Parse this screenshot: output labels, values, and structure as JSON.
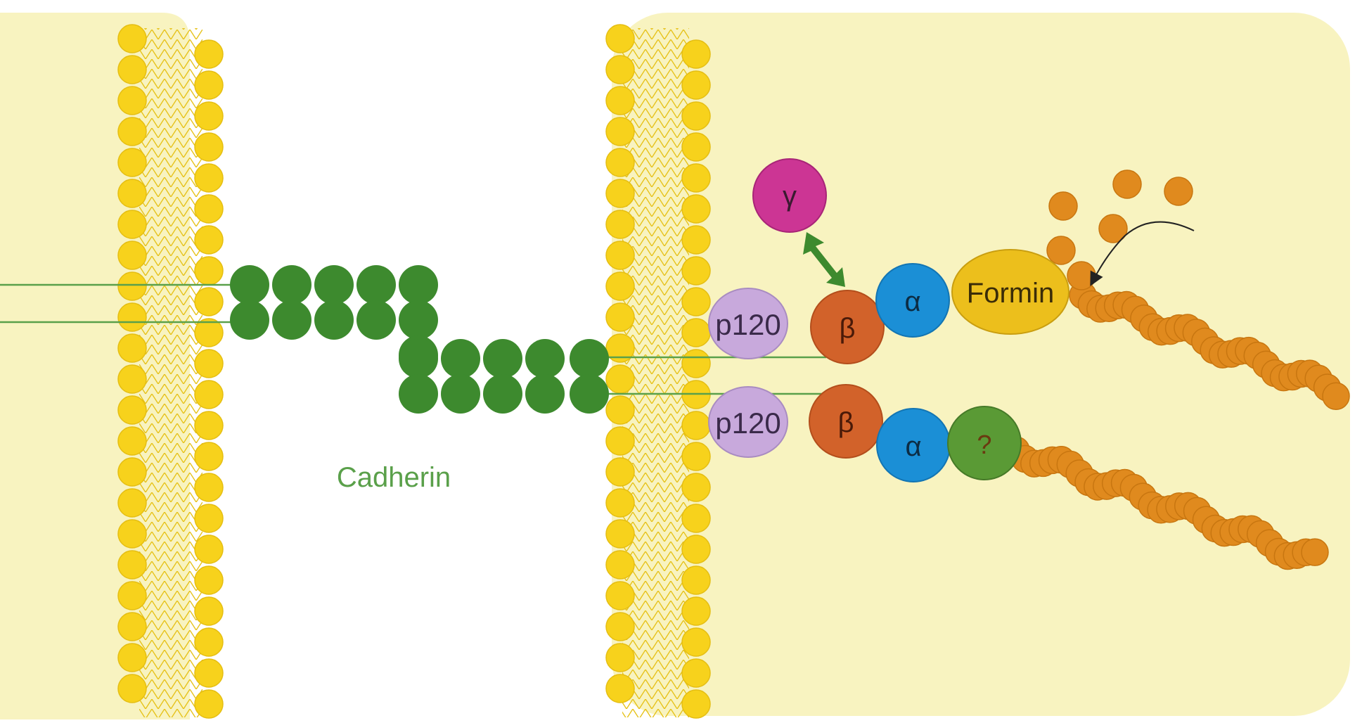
{
  "labels": {
    "cadherin": "Cadherin",
    "p120_top": "p120",
    "p120_bottom": "p120",
    "beta_top": "β",
    "beta_bottom": "β",
    "alpha_top": "α",
    "alpha_bottom": "α",
    "gamma": "γ",
    "formin": "Formin",
    "unknown": "?"
  },
  "colors": {
    "cytoplasm": "#f8f3c0",
    "lipid_head": "#f7d21c",
    "lipid_tail": "#e8c41a",
    "cadherin": "#3d8a2e",
    "cadherin_label": "#5aa04a",
    "p120": "#c8a9dc",
    "beta": "#d2622a",
    "alpha": "#1b8fd6",
    "gamma": "#cc3594",
    "formin": "#ecbf1c",
    "unknown": "#5a9a35",
    "actin": "#e08a1e",
    "arrow_green": "#3d8a2e"
  },
  "icons": {
    "double_arrow": "double-headed-arrow-icon",
    "curved_arrow": "curved-arrow-icon"
  }
}
